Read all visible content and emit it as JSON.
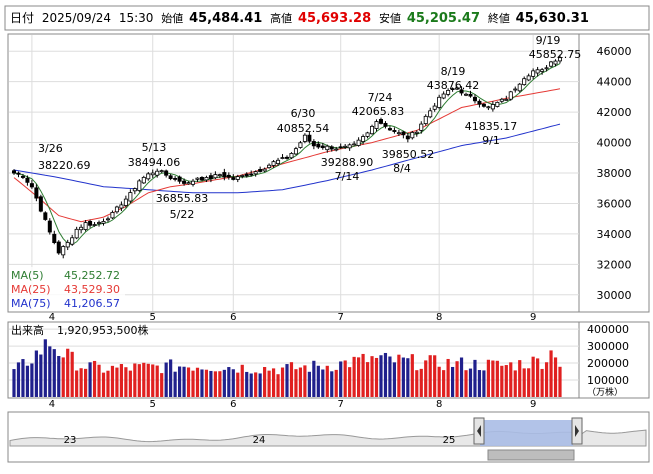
{
  "header": {
    "date_label": "日付",
    "date": "2025/09/24",
    "time": "15:30",
    "open_label": "始値",
    "open": "45,484.41",
    "high_label": "高値",
    "high": "45,693.28",
    "low_label": "安値",
    "low": "45,205.47",
    "close_label": "終値",
    "close": "45,630.31"
  },
  "legend": {
    "ma5": "MA(5)",
    "ma5_value": "45,252.72",
    "ma25": "MA(25)",
    "ma25_value": "43,529.30",
    "ma75": "MA(75)",
    "ma75_value": "41,206.57"
  },
  "volume_panel": {
    "label": "出来高",
    "value": "1,920,953,500株",
    "unit": "（万株）"
  },
  "navigator": {
    "labels": [
      "23",
      "24",
      "25"
    ]
  },
  "colors": {
    "up": "#ffffff",
    "down": "#000000",
    "ma5": "#2e7d32",
    "ma25": "#e53935",
    "ma75": "#2233cc",
    "vol_up": "#e02020",
    "vol_down": "#20208c",
    "header_green": "#1b7a1b",
    "header_red": "#e00000",
    "nav_fill": "#aabde6"
  },
  "chart_data": {
    "type": "candlestick",
    "price_axis": {
      "ticks": [
        30000,
        32000,
        34000,
        36000,
        38000,
        40000,
        42000,
        44000,
        46000
      ],
      "min": 29000,
      "max": 47000
    },
    "volume_axis": {
      "ticks": [
        100000,
        200000,
        300000,
        400000
      ],
      "min": 0,
      "max": 430000
    },
    "month_labels": [
      "4",
      "5",
      "6",
      "7",
      "8",
      "9"
    ],
    "annotations": [
      {
        "text": "3/26",
        "value": "38220.69",
        "i": 0
      },
      {
        "text": "5/13",
        "value": "38494.06",
        "i": 32
      },
      {
        "text": "5/22",
        "value": "36855.83",
        "i": 39
      },
      {
        "text": "6/30",
        "value": "40852.54",
        "i": 65
      },
      {
        "text": "7/14",
        "value": "39288.90",
        "i": 73
      },
      {
        "text": "7/24",
        "value": "42065.83",
        "i": 81
      },
      {
        "text": "8/4",
        "value": "39850.52",
        "i": 88
      },
      {
        "text": "8/19",
        "value": "43876.42",
        "i": 99
      },
      {
        "text": "9/1",
        "value": "41835.17",
        "i": 107
      },
      {
        "text": "9/19",
        "value": "45852.75",
        "i": 121
      }
    ],
    "close_keypoints": [
      [
        0,
        38000
      ],
      [
        2,
        37800
      ],
      [
        4,
        37100
      ],
      [
        6,
        35600
      ],
      [
        8,
        34100
      ],
      [
        10,
        32800
      ],
      [
        12,
        33400
      ],
      [
        14,
        34300
      ],
      [
        16,
        34700
      ],
      [
        18,
        34600
      ],
      [
        20,
        34900
      ],
      [
        22,
        35300
      ],
      [
        24,
        36000
      ],
      [
        26,
        36600
      ],
      [
        28,
        37500
      ],
      [
        30,
        37900
      ],
      [
        32,
        38200
      ],
      [
        35,
        37700
      ],
      [
        39,
        37300
      ],
      [
        41,
        37700
      ],
      [
        43,
        37600
      ],
      [
        46,
        37900
      ],
      [
        49,
        37600
      ],
      [
        52,
        37900
      ],
      [
        55,
        38200
      ],
      [
        58,
        38700
      ],
      [
        61,
        39000
      ],
      [
        63,
        39600
      ],
      [
        65,
        40400
      ],
      [
        67,
        39800
      ],
      [
        70,
        39700
      ],
      [
        73,
        39600
      ],
      [
        76,
        39800
      ],
      [
        79,
        40600
      ],
      [
        81,
        41500
      ],
      [
        84,
        40900
      ],
      [
        86,
        40600
      ],
      [
        88,
        40300
      ],
      [
        90,
        40800
      ],
      [
        92,
        41700
      ],
      [
        94,
        42500
      ],
      [
        96,
        43200
      ],
      [
        99,
        43600
      ],
      [
        101,
        43100
      ],
      [
        103,
        42800
      ],
      [
        106,
        42300
      ],
      [
        108,
        42600
      ],
      [
        110,
        42900
      ],
      [
        112,
        43600
      ],
      [
        114,
        44300
      ],
      [
        116,
        44700
      ],
      [
        118,
        44700
      ],
      [
        120,
        45300
      ],
      [
        122,
        45630
      ]
    ],
    "ma25_keypoints": [
      [
        0,
        37700
      ],
      [
        5,
        36500
      ],
      [
        10,
        35200
      ],
      [
        15,
        34800
      ],
      [
        20,
        35100
      ],
      [
        25,
        35800
      ],
      [
        30,
        36700
      ],
      [
        35,
        37100
      ],
      [
        40,
        37300
      ],
      [
        50,
        37800
      ],
      [
        60,
        38600
      ],
      [
        70,
        39400
      ],
      [
        80,
        40000
      ],
      [
        90,
        40800
      ],
      [
        100,
        42300
      ],
      [
        110,
        42900
      ],
      [
        122,
        43530
      ]
    ],
    "ma75_keypoints": [
      [
        0,
        38200
      ],
      [
        10,
        37700
      ],
      [
        20,
        37100
      ],
      [
        30,
        36900
      ],
      [
        40,
        36700
      ],
      [
        50,
        36700
      ],
      [
        60,
        36900
      ],
      [
        70,
        37500
      ],
      [
        80,
        38200
      ],
      [
        90,
        39000
      ],
      [
        100,
        39800
      ],
      [
        110,
        40300
      ],
      [
        122,
        41210
      ]
    ],
    "volume_keypoints": [
      [
        0,
        150000
      ],
      [
        5,
        260000
      ],
      [
        8,
        330000
      ],
      [
        10,
        280000
      ],
      [
        15,
        190000
      ],
      [
        20,
        170000
      ],
      [
        30,
        180000
      ],
      [
        40,
        190000
      ],
      [
        50,
        180000
      ],
      [
        60,
        170000
      ],
      [
        70,
        190000
      ],
      [
        80,
        230000
      ],
      [
        90,
        210000
      ],
      [
        100,
        200000
      ],
      [
        110,
        190000
      ],
      [
        118,
        220000
      ],
      [
        121,
        290000
      ],
      [
        122,
        200000
      ]
    ],
    "navigator_series": {
      "min": 0,
      "max": 1
    }
  }
}
